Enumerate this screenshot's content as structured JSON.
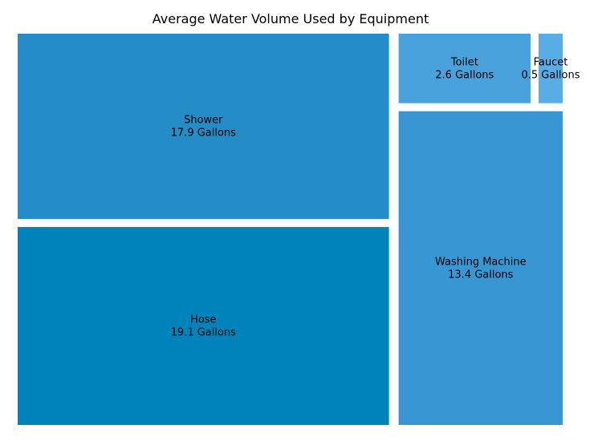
{
  "chart_data": {
    "type": "treemap",
    "title": "Average Water Volume Used by Equipment",
    "unit": "Gallons",
    "items": [
      {
        "name": "Hose",
        "value": 19.1,
        "value_label": "19.1 Gallons",
        "color": "#0083BB"
      },
      {
        "name": "Shower",
        "value": 17.9,
        "value_label": "17.9 Gallons",
        "color": "#248DC8"
      },
      {
        "name": "Washing Machine",
        "value": 13.4,
        "value_label": "13.4 Gallons",
        "color": "#3897D2"
      },
      {
        "name": "Toilet",
        "value": 2.6,
        "value_label": "2.6 Gallons",
        "color": "#4AA2DD"
      },
      {
        "name": "Faucet",
        "value": 0.5,
        "value_label": "0.5 Gallons",
        "color": "#58ADE7"
      }
    ]
  }
}
